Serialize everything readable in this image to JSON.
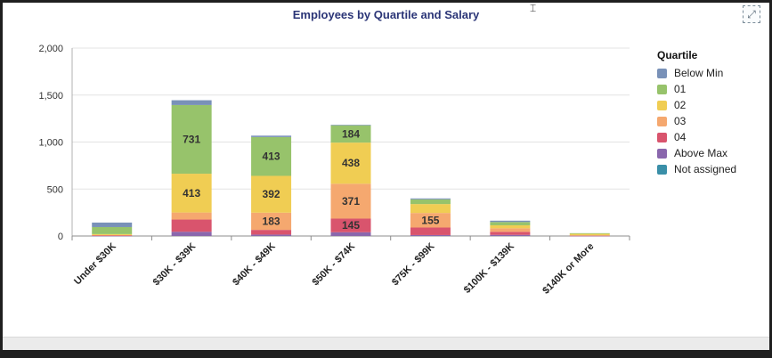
{
  "chart_data": {
    "type": "bar",
    "stacked": true,
    "title": "Employees by Quartile and Salary",
    "xlabel": "",
    "ylabel": "",
    "ylim": [
      0,
      2000
    ],
    "yticks": [
      0,
      500,
      1000,
      1500,
      2000
    ],
    "ytick_labels": [
      "0",
      "500",
      "1,000",
      "1,500",
      "2,000"
    ],
    "grid": true,
    "categories": [
      "Under $30K",
      "$30K - $39K",
      "$40K - $49K",
      "$50K - $74K",
      "$75K - $99K",
      "$100K - $139K",
      "$140K or More"
    ],
    "legend_title": "Quartile",
    "legend_position": "right",
    "series": [
      {
        "name": "Not assigned",
        "color": "#3a8fa8",
        "values": [
          0,
          0,
          0,
          0,
          0,
          0,
          0
        ]
      },
      {
        "name": "Above Max",
        "color": "#8a67ad",
        "values": [
          2,
          45,
          15,
          40,
          10,
          12,
          1
        ]
      },
      {
        "name": "04",
        "color": "#d9546d",
        "values": [
          3,
          130,
          50,
          145,
          80,
          32,
          2
        ]
      },
      {
        "name": "03",
        "color": "#f5a86f",
        "values": [
          5,
          75,
          183,
          371,
          155,
          38,
          5
        ]
      },
      {
        "name": "02",
        "color": "#f0cd53",
        "values": [
          10,
          413,
          392,
          438,
          95,
          32,
          15
        ]
      },
      {
        "name": "01",
        "color": "#97c36b",
        "values": [
          75,
          731,
          413,
          184,
          50,
          35,
          7
        ]
      },
      {
        "name": "Below Min",
        "color": "#7991b8",
        "values": [
          48,
          51,
          15,
          6,
          10,
          14,
          0
        ]
      }
    ],
    "data_labels": [
      {
        "category": "$30K - $39K",
        "series": "02",
        "text": "413"
      },
      {
        "category": "$30K - $39K",
        "series": "01",
        "text": "731"
      },
      {
        "category": "$40K - $49K",
        "series": "03",
        "text": "183"
      },
      {
        "category": "$40K - $49K",
        "series": "02",
        "text": "392"
      },
      {
        "category": "$40K - $49K",
        "series": "01",
        "text": "413"
      },
      {
        "category": "$50K - $74K",
        "series": "04",
        "text": "145"
      },
      {
        "category": "$50K - $74K",
        "series": "03",
        "text": "371"
      },
      {
        "category": "$50K - $74K",
        "series": "02",
        "text": "438"
      },
      {
        "category": "$50K - $74K",
        "series": "01",
        "text": "184"
      },
      {
        "category": "$75K - $99K",
        "series": "03",
        "text": "155"
      }
    ]
  },
  "legend_items": [
    {
      "name": "Below Min",
      "color": "#7991b8"
    },
    {
      "name": "01",
      "color": "#97c36b"
    },
    {
      "name": "02",
      "color": "#f0cd53"
    },
    {
      "name": "03",
      "color": "#f5a86f"
    },
    {
      "name": "04",
      "color": "#d9546d"
    },
    {
      "name": "Above Max",
      "color": "#8a67ad"
    },
    {
      "name": "Not assigned",
      "color": "#3a8fa8"
    }
  ],
  "controls": {
    "expand_icon": "expand-icon"
  }
}
